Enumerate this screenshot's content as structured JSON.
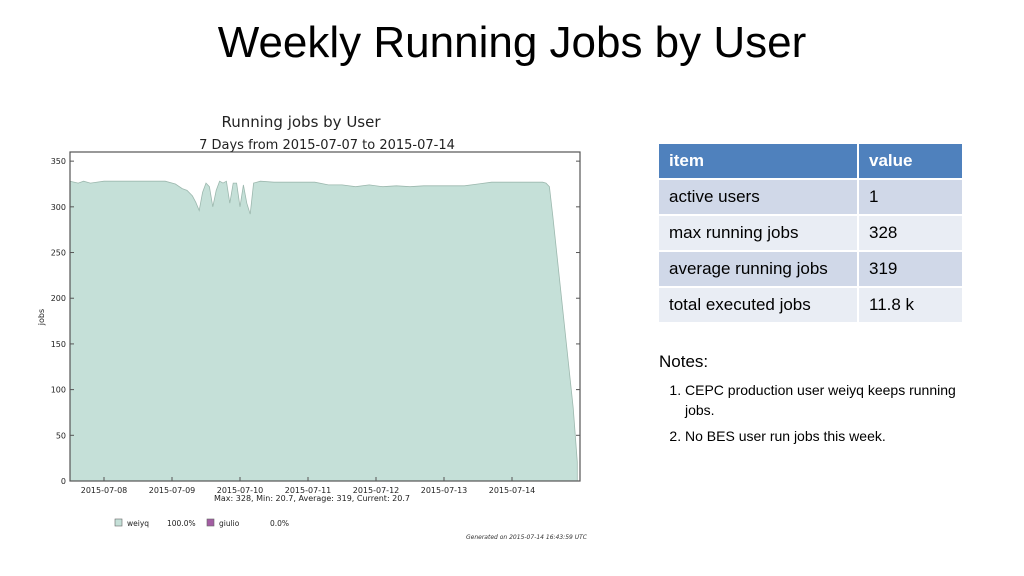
{
  "slide": {
    "title": "Weekly Running Jobs by User"
  },
  "table": {
    "headers": [
      "item",
      "value"
    ],
    "rows": [
      [
        "active users",
        "1"
      ],
      [
        "max running jobs",
        "328"
      ],
      [
        "average running jobs",
        "319"
      ],
      [
        "total executed jobs",
        "11.8 k"
      ]
    ],
    "colors": {
      "header": "#4f81bd",
      "row_odd": "#d0d8e8",
      "row_even": "#e9edf4"
    }
  },
  "notes": {
    "title": "Notes:",
    "items": [
      "CEPC production user weiyq keeps running jobs.",
      "No BES user run jobs this week."
    ]
  },
  "chart_data": {
    "type": "area",
    "title": "Running jobs by User",
    "subtitle": "7 Days from 2015-07-07 to 2015-07-14",
    "ylabel": "jobs",
    "xlabel": "",
    "ylim": [
      0,
      360
    ],
    "yticks": [
      0,
      50,
      100,
      150,
      200,
      250,
      300,
      350
    ],
    "xlim": [
      0,
      7.5
    ],
    "xtick_labels": [
      "2015-07-08",
      "2015-07-09",
      "2015-07-10",
      "2015-07-11",
      "2015-07-12",
      "2015-07-13",
      "2015-07-14"
    ],
    "xtick_positions": [
      0.5,
      1.5,
      2.5,
      3.5,
      4.5,
      5.5,
      6.5
    ],
    "grid": false,
    "summary": "Max: 328, Min: 20.7, Average: 319, Current: 20.7",
    "series": [
      {
        "name": "weiyq",
        "color": "#c5e0d8",
        "x": [
          0.0,
          0.12,
          0.2,
          0.3,
          0.5,
          0.8,
          1.1,
          1.4,
          1.55,
          1.65,
          1.72,
          1.8,
          1.85,
          1.9,
          1.95,
          2.0,
          2.05,
          2.1,
          2.15,
          2.2,
          2.25,
          2.3,
          2.35,
          2.4,
          2.45,
          2.5,
          2.55,
          2.6,
          2.65,
          2.7,
          2.8,
          3.0,
          3.3,
          3.6,
          3.8,
          4.0,
          4.2,
          4.4,
          4.6,
          4.8,
          5.0,
          5.2,
          5.4,
          5.6,
          5.8,
          6.0,
          6.2,
          6.4,
          6.6,
          6.7,
          6.8,
          6.85,
          6.9,
          6.95,
          7.0,
          7.05,
          7.1,
          7.2,
          7.3,
          7.4,
          7.46
        ],
        "values": [
          328,
          326,
          328,
          326,
          328,
          328,
          328,
          328,
          325,
          320,
          318,
          312,
          305,
          296,
          316,
          326,
          322,
          300,
          318,
          328,
          326,
          328,
          304,
          326,
          326,
          300,
          324,
          304,
          292,
          326,
          328,
          327,
          327,
          327,
          324,
          324,
          322,
          324,
          322,
          323,
          322,
          323,
          323,
          323,
          323,
          325,
          327,
          327,
          327,
          327,
          327,
          327,
          327,
          327,
          326,
          322,
          290,
          220,
          150,
          80,
          20.7
        ],
        "legend_pct": "100.0%"
      },
      {
        "name": "giulio",
        "color": "#a35da3",
        "x": [],
        "values": [],
        "legend_pct": "0.0%"
      }
    ],
    "footer": "Generated on 2015-07-14 16:43:59 UTC"
  }
}
